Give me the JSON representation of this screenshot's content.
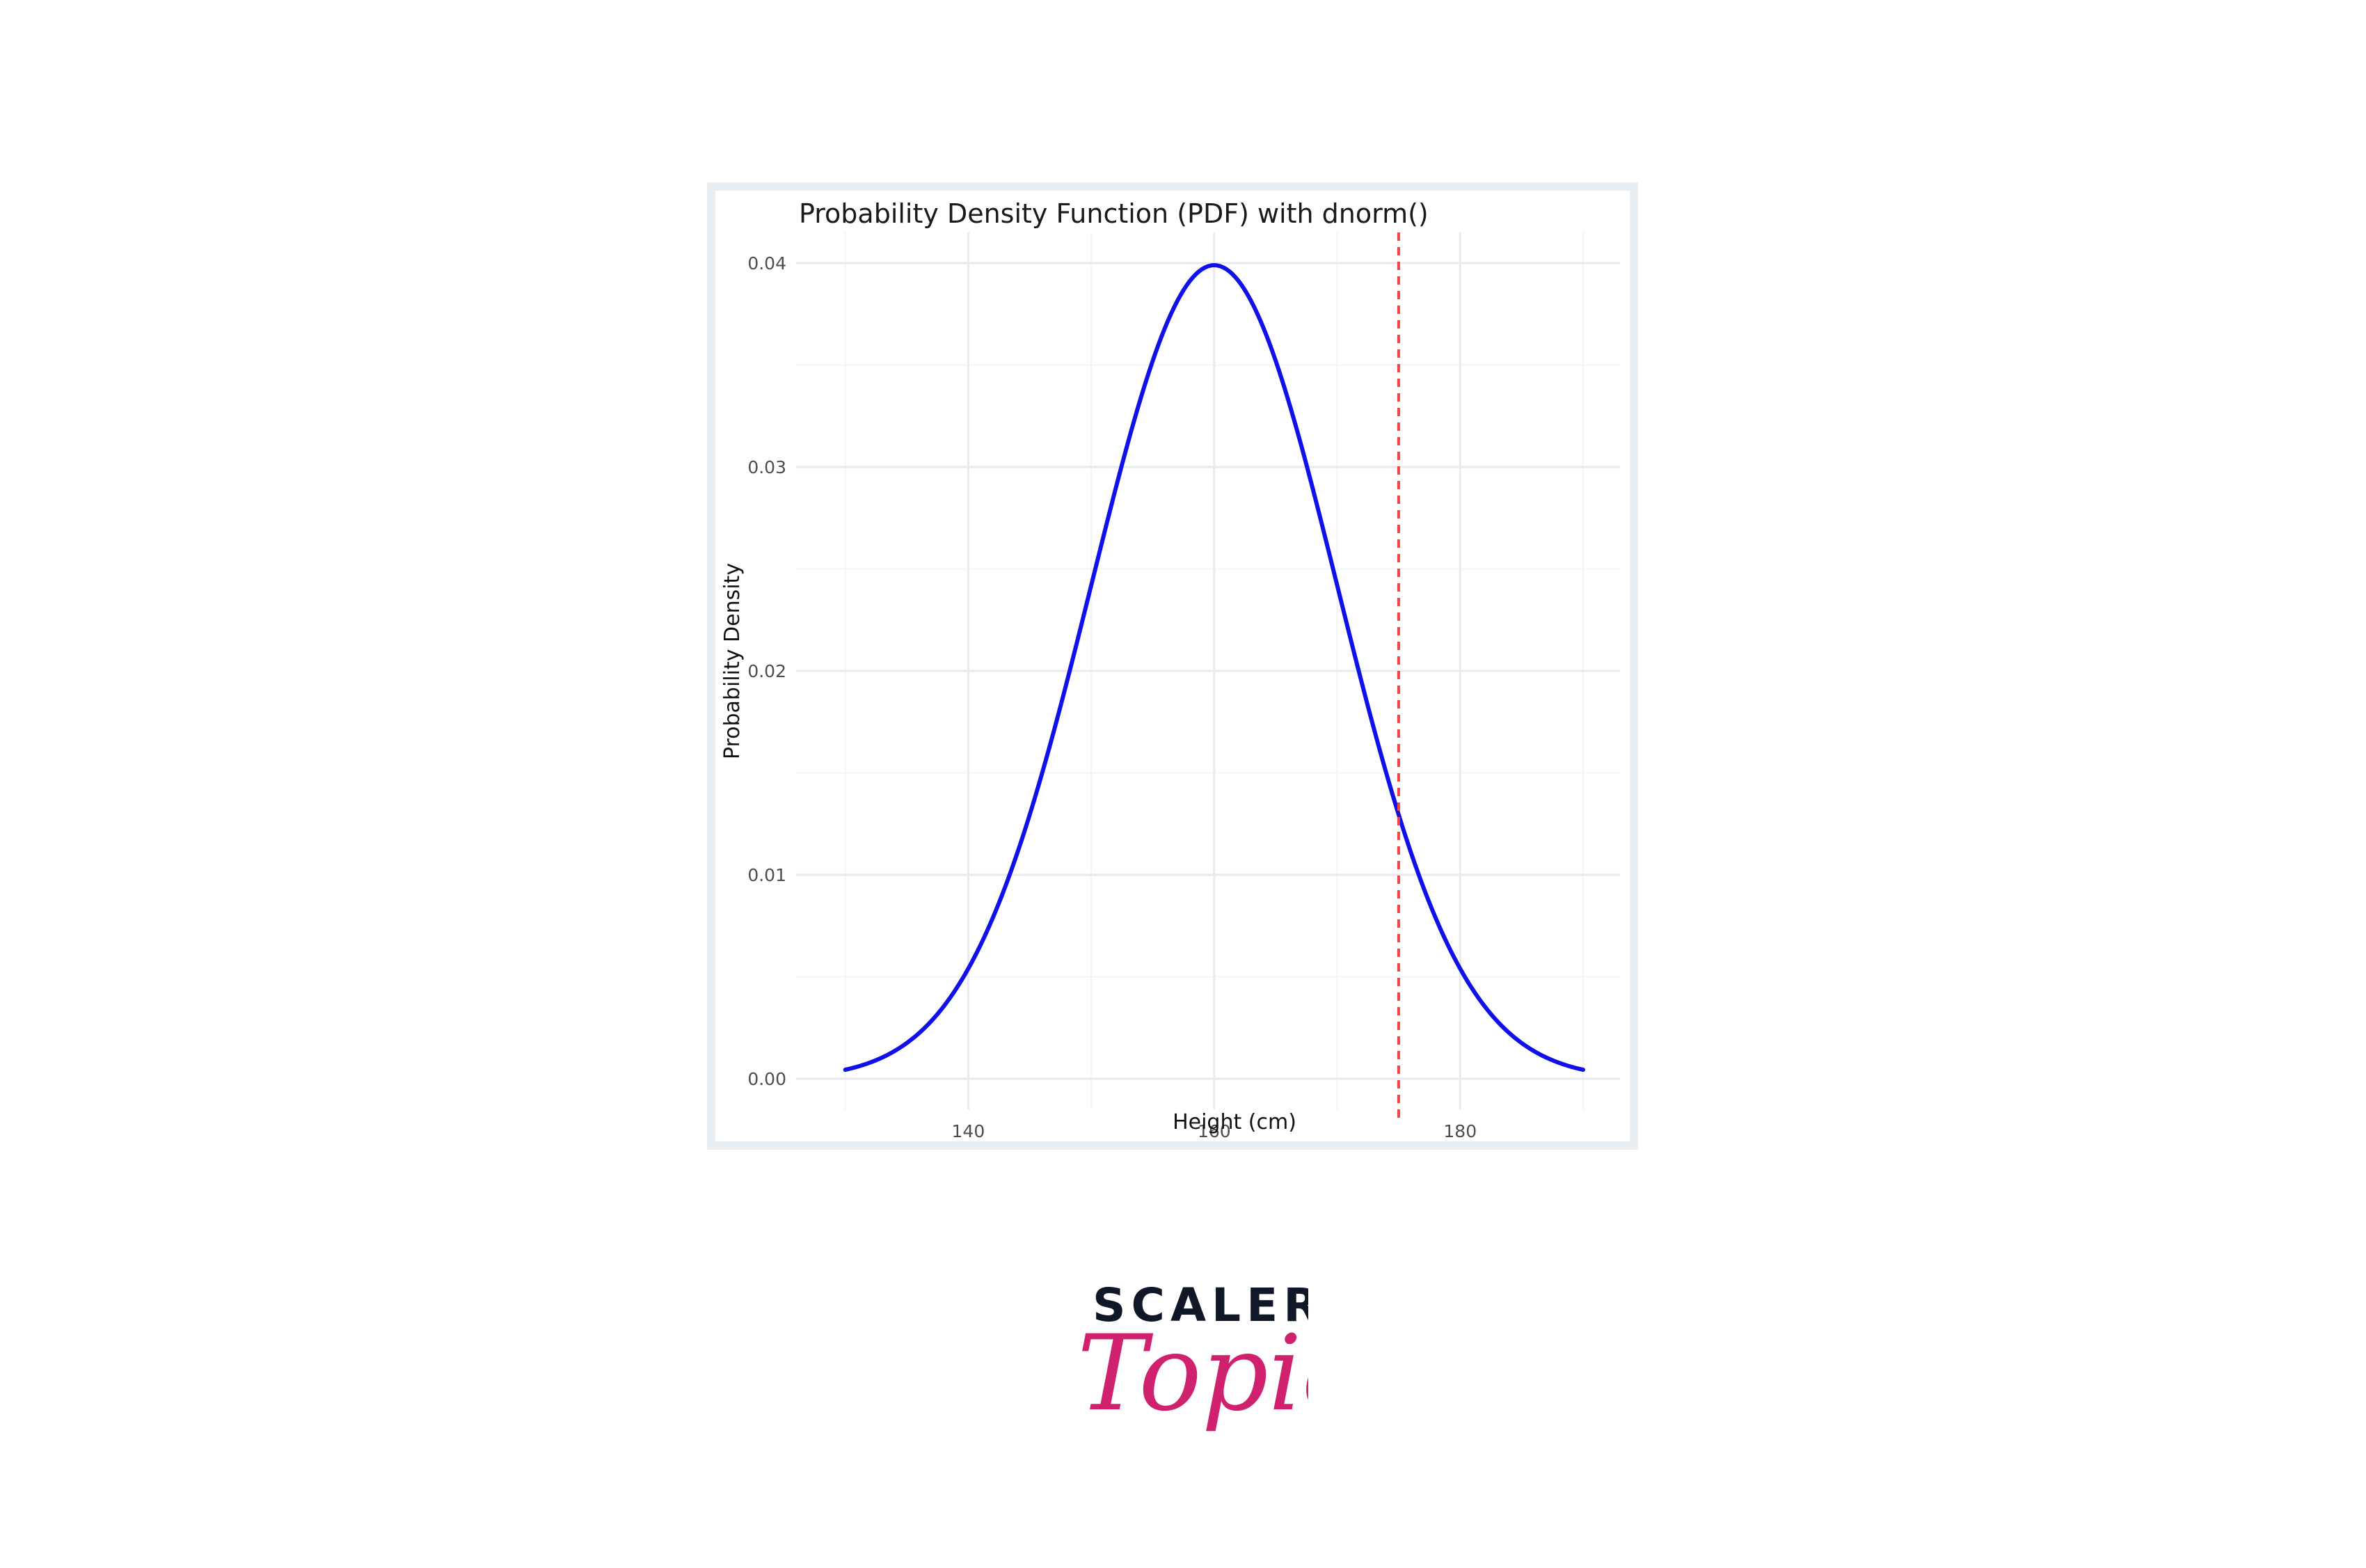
{
  "chart_data": {
    "type": "line",
    "title": "Probability Density Function (PDF) with dnorm()",
    "xlabel": "Height (cm)",
    "ylabel": "Probability Density",
    "distribution": {
      "mean": 160,
      "sd": 10
    },
    "x_range": [
      130,
      190
    ],
    "xlim": [
      126,
      193
    ],
    "ylim": [
      -0.0015,
      0.0415
    ],
    "x_ticks": [
      140,
      160,
      180
    ],
    "x_tick_labels": [
      "140",
      "160",
      "180"
    ],
    "y_ticks": [
      0.0,
      0.01,
      0.02,
      0.03,
      0.04
    ],
    "y_tick_labels": [
      "0.00",
      "0.01",
      "0.02",
      "0.03",
      "0.04"
    ],
    "x_minor_gridlines": [
      130,
      150,
      170,
      190
    ],
    "y_minor_gridlines": [
      0.005,
      0.015,
      0.025,
      0.035
    ],
    "series": [
      {
        "color": "#1010e8",
        "x": [
          130,
          132,
          134,
          136,
          138,
          140,
          142,
          144,
          146,
          148,
          150,
          152,
          154,
          156,
          158,
          160,
          162,
          164,
          166,
          168,
          170,
          172,
          174,
          176,
          178,
          180,
          182,
          184,
          186,
          188,
          190
        ],
        "values": [
          0.00044,
          0.00079,
          0.00136,
          0.00224,
          0.00355,
          0.0054,
          0.0079,
          0.01109,
          0.01497,
          0.01942,
          0.0242,
          0.02897,
          0.03332,
          0.03683,
          0.0391,
          0.03989,
          0.0391,
          0.03683,
          0.03332,
          0.02897,
          0.0242,
          0.01942,
          0.01497,
          0.01109,
          0.0079,
          0.0054,
          0.00355,
          0.00224,
          0.00136,
          0.00079,
          0.00044
        ]
      }
    ],
    "reference_line": {
      "x": 175,
      "color": "#f04545",
      "style": "dashed"
    },
    "grid": true,
    "legend": "none"
  },
  "logo": {
    "word": "SCALER",
    "script": "Topics",
    "word_color": "#101828",
    "script_color": "#d0216f"
  }
}
